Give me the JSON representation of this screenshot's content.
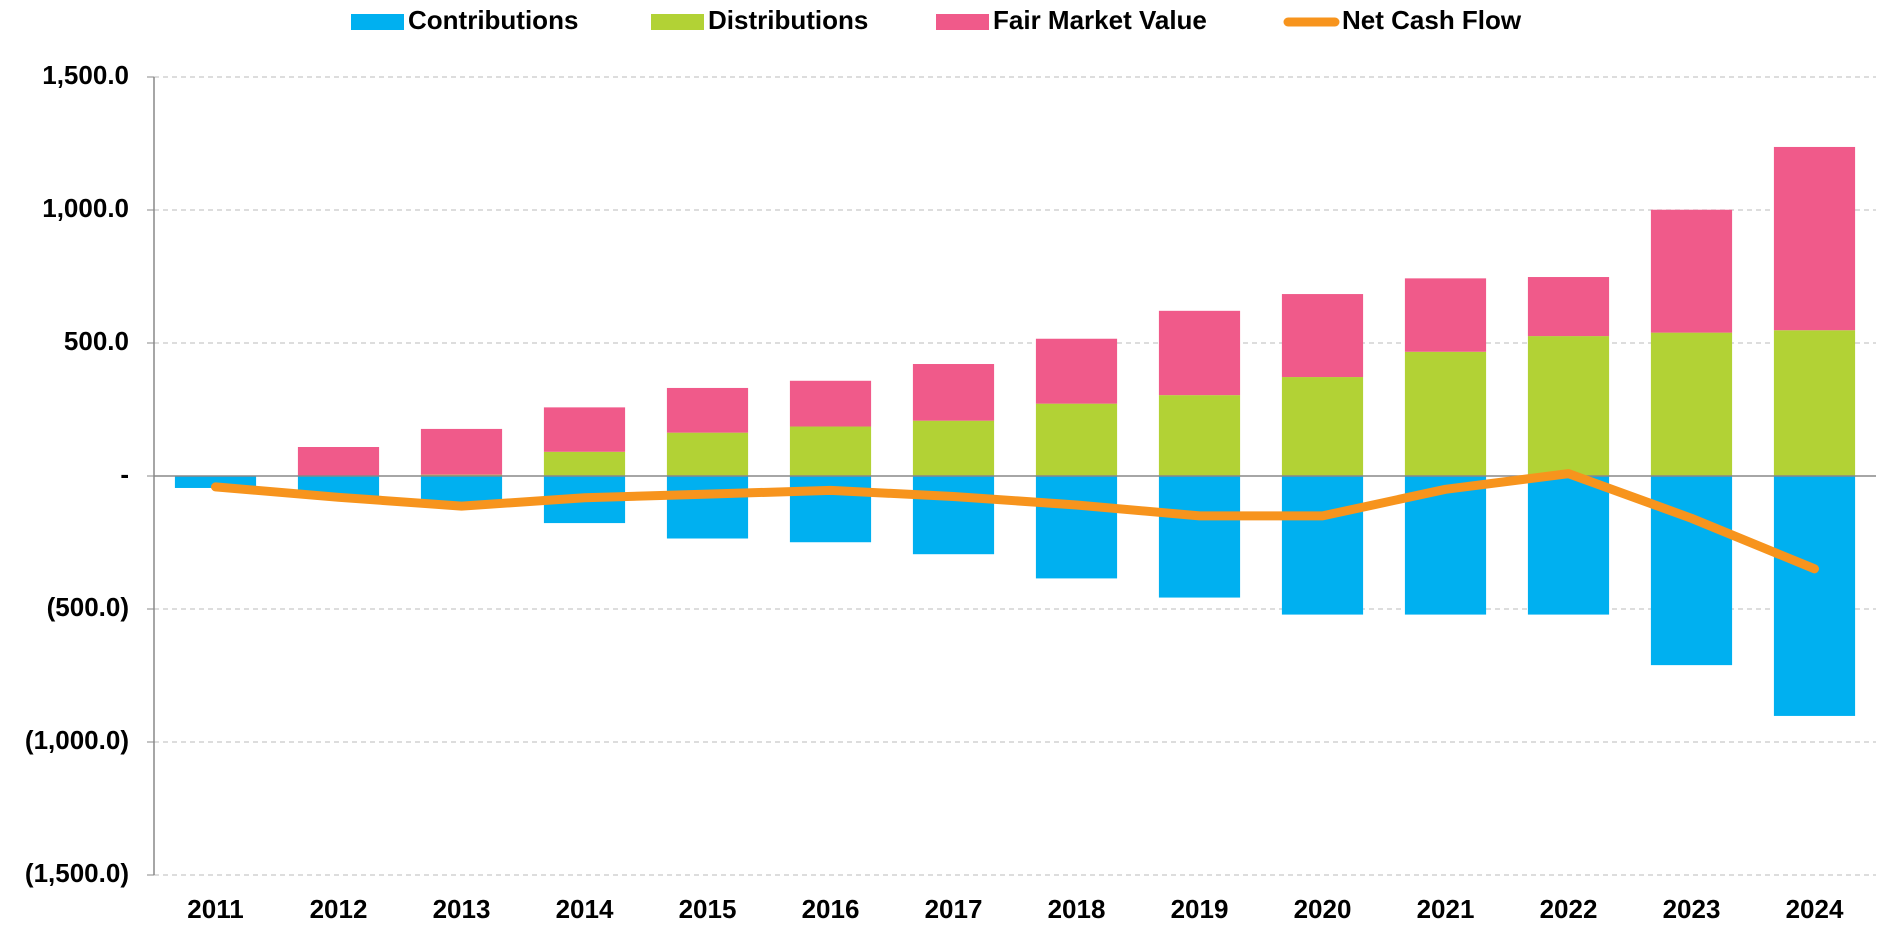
{
  "chart_data": {
    "type": "bar",
    "categories": [
      "2011",
      "2012",
      "2013",
      "2014",
      "2015",
      "2016",
      "2017",
      "2018",
      "2019",
      "2020",
      "2021",
      "2022",
      "2023",
      "2024"
    ],
    "series": [
      {
        "name": "Contributions",
        "color": "#00b0f0",
        "values": [
          -45,
          -80,
          -110,
          -177,
          -235,
          -249,
          -294,
          -385,
          -457,
          -521,
          -521,
          -521,
          -711,
          -902
        ]
      },
      {
        "name": "Distributions",
        "color": "#b2d235",
        "values": [
          0,
          0,
          5,
          91,
          163,
          186,
          208,
          272,
          304,
          372,
          467,
          526,
          539,
          548
        ]
      },
      {
        "name": "Fair Market Value",
        "color": "#f05a8a",
        "values": [
          0,
          109,
          172,
          167,
          168,
          172,
          213,
          244,
          317,
          312,
          276,
          222,
          462,
          689
        ]
      },
      {
        "name": "Net Cash Flow",
        "type": "line",
        "color": "#f7941d",
        "values": [
          -41,
          -80,
          -113,
          -82,
          -68,
          -54,
          -77,
          -109,
          -150,
          -150,
          -50,
          9,
          -159,
          -349
        ]
      }
    ],
    "ylim": [
      -1500,
      1500
    ],
    "yticks": [
      {
        "value": 1500,
        "label": "1,500.0"
      },
      {
        "value": 1000,
        "label": "1,000.0"
      },
      {
        "value": 500,
        "label": "500.0"
      },
      {
        "value": 0,
        "label": "-"
      },
      {
        "value": -500,
        "label": "(500.0)"
      },
      {
        "value": -1000,
        "label": "(1,000.0)"
      },
      {
        "value": -1500,
        "label": "(1,500.0)"
      }
    ],
    "grid": true,
    "legend": "top",
    "stacked": true
  }
}
